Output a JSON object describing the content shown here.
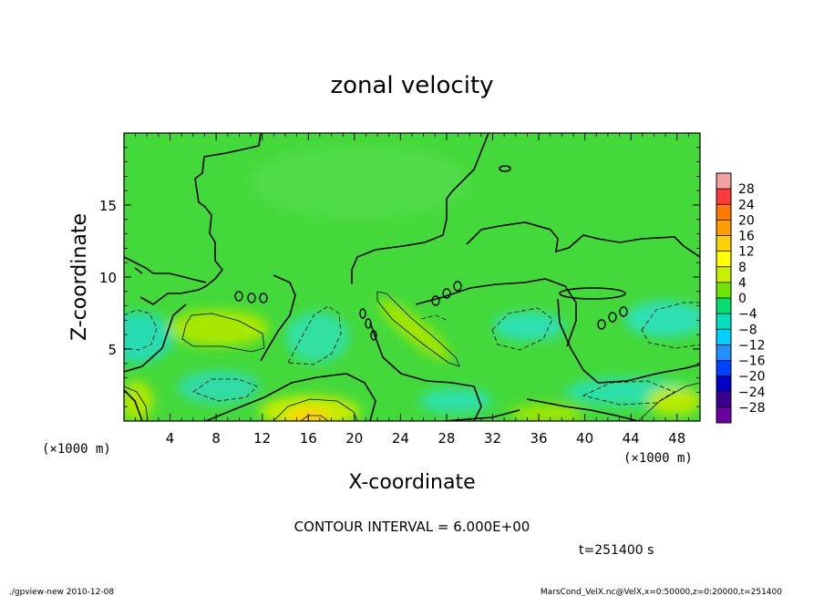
{
  "chart_data": {
    "type": "heatmap",
    "title": "zonal velocity",
    "xlabel": "X-coordinate",
    "ylabel": "Z-coordinate",
    "x_unit_left": "(×1000 m)",
    "x_unit_right": "(×1000 m)",
    "xlim": [
      0,
      50
    ],
    "ylim": [
      0,
      20
    ],
    "x_ticks": [
      "4",
      "8",
      "12",
      "16",
      "20",
      "24",
      "28",
      "32",
      "36",
      "40",
      "44",
      "48"
    ],
    "y_ticks": [
      "5",
      "10",
      "15"
    ],
    "colorbar": {
      "labels": [
        "28",
        "24",
        "20",
        "16",
        "12",
        "8",
        "4",
        "0",
        "−4",
        "−8",
        "−12",
        "−16",
        "−20",
        "−24",
        "−28"
      ],
      "colors": [
        "#f4a0a0",
        "#ff3a3a",
        "#ff7a00",
        "#ff9e00",
        "#ffd200",
        "#ffff00",
        "#c8f000",
        "#6ee400",
        "#00e070",
        "#00e0c0",
        "#00d0ff",
        "#2090ff",
        "#0040ff",
        "#0000c8",
        "#3a0090",
        "#6a00a0"
      ]
    },
    "contour_interval_text": "CONTOUR INTERVAL = 6.000E+00",
    "contour_levels": [
      -6,
      0,
      6
    ],
    "time_text": "t=251400 s"
  },
  "footer": {
    "left": "./gpview-new  2010-12-08",
    "right": "MarsCond_VelX.nc@VelX,x=0:50000,z=0:20000,t=251400"
  },
  "colors": {
    "background": "#ffffff",
    "field_base": "#44d93a"
  }
}
